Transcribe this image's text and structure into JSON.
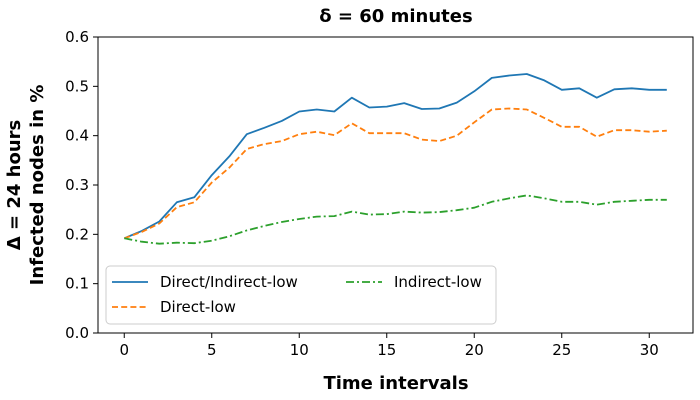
{
  "chart_data": {
    "type": "line",
    "title": "δ = 60 minutes",
    "xlabel": "Time intervals",
    "ylabel_line1": "Δ = 24 hours",
    "ylabel_line2": "Infected nodes in %",
    "xlim": [
      -1.5,
      32.5
    ],
    "ylim": [
      0.0,
      0.6
    ],
    "xticks": [
      0,
      5,
      10,
      15,
      20,
      25,
      30
    ],
    "yticks": [
      0.0,
      0.1,
      0.2,
      0.3,
      0.4,
      0.5,
      0.6
    ],
    "ytick_labels": [
      "0.0",
      "0.1",
      "0.2",
      "0.3",
      "0.4",
      "0.5",
      "0.6"
    ],
    "grid": false,
    "legend_position": "lower-left",
    "x": [
      0,
      1,
      2,
      3,
      4,
      5,
      6,
      7,
      8,
      9,
      10,
      11,
      12,
      13,
      14,
      15,
      16,
      17,
      18,
      19,
      20,
      21,
      22,
      23,
      24,
      25,
      26,
      27,
      28,
      29,
      30,
      31
    ],
    "series": [
      {
        "name": "Direct/Indirect-low",
        "color": "#1f77b4",
        "dash": "solid",
        "values": [
          0.192,
          0.207,
          0.226,
          0.265,
          0.275,
          0.32,
          0.358,
          0.403,
          0.416,
          0.43,
          0.449,
          0.453,
          0.449,
          0.477,
          0.457,
          0.459,
          0.466,
          0.454,
          0.455,
          0.467,
          0.49,
          0.517,
          0.522,
          0.525,
          0.512,
          0.493,
          0.496,
          0.477,
          0.494,
          0.496,
          0.493,
          0.493
        ]
      },
      {
        "name": "Direct-low",
        "color": "#ff7f0e",
        "dash": "dashed",
        "values": [
          0.192,
          0.205,
          0.222,
          0.255,
          0.265,
          0.305,
          0.335,
          0.373,
          0.383,
          0.389,
          0.403,
          0.408,
          0.401,
          0.425,
          0.405,
          0.405,
          0.405,
          0.392,
          0.389,
          0.4,
          0.427,
          0.453,
          0.455,
          0.453,
          0.436,
          0.418,
          0.418,
          0.398,
          0.411,
          0.411,
          0.408,
          0.41
        ]
      },
      {
        "name": "Indirect-low",
        "color": "#2ca02c",
        "dash": "dashdot",
        "values": [
          0.192,
          0.185,
          0.181,
          0.183,
          0.182,
          0.187,
          0.196,
          0.208,
          0.217,
          0.225,
          0.231,
          0.236,
          0.237,
          0.246,
          0.24,
          0.241,
          0.246,
          0.244,
          0.245,
          0.249,
          0.254,
          0.266,
          0.273,
          0.279,
          0.273,
          0.266,
          0.266,
          0.26,
          0.266,
          0.268,
          0.27,
          0.27
        ]
      }
    ]
  }
}
